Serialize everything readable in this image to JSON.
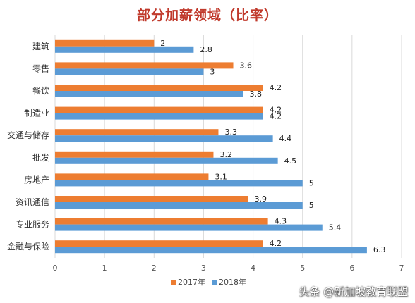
{
  "chart_data": {
    "type": "bar",
    "orientation": "horizontal",
    "title": "部分加薪领域（比率）",
    "categories": [
      "建筑",
      "零售",
      "餐饮",
      "制造业",
      "交通与储存",
      "批发",
      "房地产",
      "资讯通信",
      "专业服务",
      "金融与保险"
    ],
    "series": [
      {
        "name": "2017年",
        "color": "#ed7d31",
        "values": [
          2,
          3.6,
          4.2,
          4.2,
          3.3,
          3.2,
          3.1,
          3.9,
          4.3,
          4.2
        ]
      },
      {
        "name": "2018年",
        "color": "#5b9bd5",
        "values": [
          2.8,
          3,
          3.8,
          4.2,
          4.4,
          4.5,
          5,
          5,
          5.4,
          6.3
        ]
      }
    ],
    "xlim": [
      0,
      7
    ],
    "xticks": [
      "0",
      "1",
      "2",
      "3",
      "4",
      "5",
      "6",
      "7"
    ],
    "grid": "vertical",
    "legend_position": "bottom"
  },
  "watermark": "头条 @新加坡教育联盟"
}
